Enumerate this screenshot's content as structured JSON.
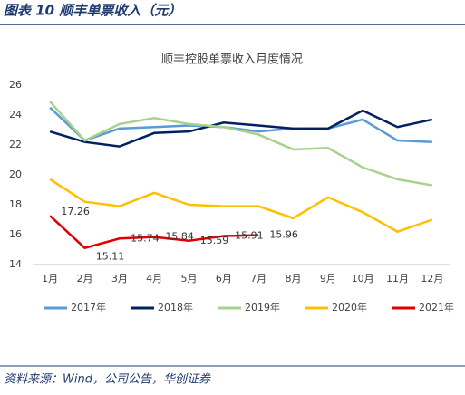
{
  "header": {
    "title": "图表 10   顺丰单票收入（元）"
  },
  "chart_data": {
    "type": "line",
    "title": "顺丰控股单票收入月度情况",
    "categories": [
      "1月",
      "2月",
      "3月",
      "4月",
      "5月",
      "6月",
      "7月",
      "8月",
      "9月",
      "10月",
      "11月",
      "12月"
    ],
    "ylim": [
      14,
      26
    ],
    "yticks": [
      14,
      16,
      18,
      20,
      22,
      24,
      26
    ],
    "series": [
      {
        "name": "2017年",
        "color": "#5b9bd5",
        "values": [
          24.5,
          22.3,
          23.1,
          23.2,
          23.3,
          23.2,
          22.9,
          23.1,
          23.1,
          23.7,
          22.3,
          22.2
        ]
      },
      {
        "name": "2018年",
        "color": "#002060",
        "values": [
          22.9,
          22.2,
          21.9,
          22.8,
          22.9,
          23.5,
          23.3,
          23.1,
          23.1,
          24.3,
          23.2,
          23.7
        ]
      },
      {
        "name": "2019年",
        "color": "#a9d18e",
        "values": [
          24.9,
          22.3,
          23.4,
          23.8,
          23.4,
          23.2,
          22.7,
          21.7,
          21.8,
          20.5,
          19.7,
          19.3
        ]
      },
      {
        "name": "2020年",
        "color": "#ffc000",
        "values": [
          19.7,
          18.2,
          17.9,
          18.8,
          18.0,
          17.9,
          17.9,
          17.1,
          18.5,
          17.5,
          16.2,
          17.0
        ]
      },
      {
        "name": "2021年",
        "color": "#e00000",
        "values": [
          17.26,
          15.11,
          15.74,
          15.84,
          15.59,
          15.91,
          15.96,
          null,
          null,
          null,
          null,
          null
        ],
        "data_labels": true
      }
    ]
  },
  "footer": {
    "source": "资料来源：Wind，公司公告，华创证券"
  }
}
